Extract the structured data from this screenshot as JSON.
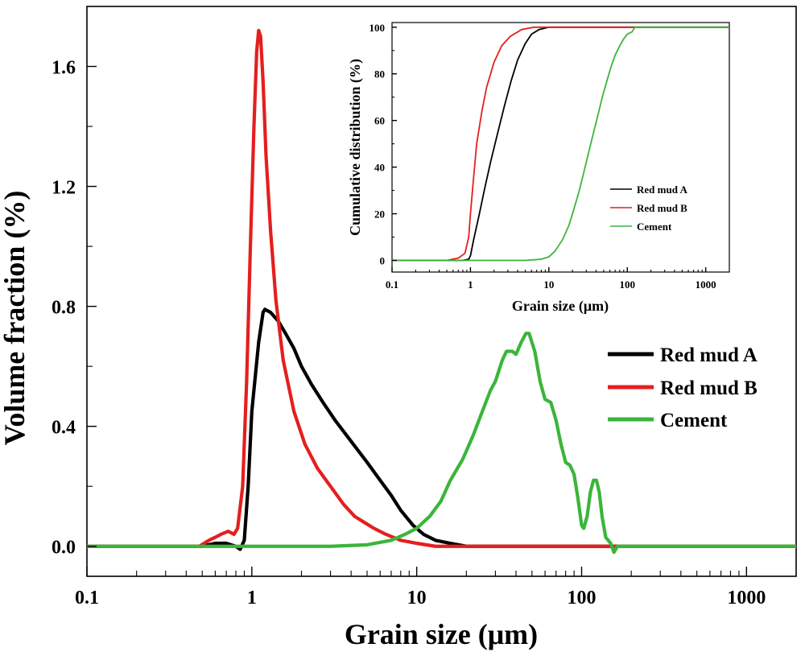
{
  "chart_data": [
    {
      "id": "main",
      "type": "line",
      "xlabel": "Grain size (μm)",
      "ylabel": "Volume fraction (%)",
      "xscale": "log",
      "xlim": [
        0.1,
        2000
      ],
      "ylim": [
        -0.1,
        1.8
      ],
      "x_ticks": [
        0.1,
        1,
        10,
        100,
        1000
      ],
      "x_tick_labels": [
        "0.1",
        "1",
        "10",
        "100",
        "1000"
      ],
      "y_ticks": [
        0.0,
        0.4,
        0.8,
        1.2,
        1.6
      ],
      "y_tick_labels": [
        "0.0",
        "0.4",
        "0.8",
        "1.2",
        "1.6"
      ],
      "legend_position": "middle-right",
      "grid": false,
      "series": [
        {
          "name": "Red mud A",
          "color": "#000000",
          "points": [
            [
              0.1,
              0
            ],
            [
              0.5,
              0
            ],
            [
              0.6,
              0.01
            ],
            [
              0.7,
              0.01
            ],
            [
              0.8,
              0.0
            ],
            [
              0.85,
              -0.01
            ],
            [
              0.9,
              0.02
            ],
            [
              0.95,
              0.2
            ],
            [
              1.0,
              0.45
            ],
            [
              1.1,
              0.68
            ],
            [
              1.17,
              0.78
            ],
            [
              1.2,
              0.79
            ],
            [
              1.3,
              0.78
            ],
            [
              1.45,
              0.75
            ],
            [
              1.6,
              0.71
            ],
            [
              1.8,
              0.66
            ],
            [
              2.0,
              0.6
            ],
            [
              2.3,
              0.54
            ],
            [
              2.7,
              0.48
            ],
            [
              3.2,
              0.42
            ],
            [
              4.0,
              0.35
            ],
            [
              5.0,
              0.28
            ],
            [
              6.0,
              0.22
            ],
            [
              7.0,
              0.17
            ],
            [
              8.0,
              0.12
            ],
            [
              9.5,
              0.07
            ],
            [
              11,
              0.04
            ],
            [
              13,
              0.02
            ],
            [
              16,
              0.01
            ],
            [
              20,
              0.0
            ],
            [
              30,
              0
            ],
            [
              2000,
              0
            ]
          ]
        },
        {
          "name": "Red mud B",
          "color": "#e41f1f",
          "points": [
            [
              0.1,
              0
            ],
            [
              0.48,
              0
            ],
            [
              0.55,
              0.02
            ],
            [
              0.6,
              0.03
            ],
            [
              0.65,
              0.04
            ],
            [
              0.72,
              0.05
            ],
            [
              0.78,
              0.04
            ],
            [
              0.82,
              0.06
            ],
            [
              0.88,
              0.2
            ],
            [
              0.93,
              0.55
            ],
            [
              0.98,
              1.0
            ],
            [
              1.03,
              1.4
            ],
            [
              1.07,
              1.65
            ],
            [
              1.1,
              1.72
            ],
            [
              1.13,
              1.7
            ],
            [
              1.17,
              1.55
            ],
            [
              1.22,
              1.3
            ],
            [
              1.3,
              1.05
            ],
            [
              1.4,
              0.82
            ],
            [
              1.55,
              0.62
            ],
            [
              1.8,
              0.45
            ],
            [
              2.1,
              0.34
            ],
            [
              2.5,
              0.26
            ],
            [
              3.0,
              0.2
            ],
            [
              3.6,
              0.14
            ],
            [
              4.2,
              0.1
            ],
            [
              4.8,
              0.08
            ],
            [
              5.5,
              0.06
            ],
            [
              6.5,
              0.04
            ],
            [
              8,
              0.02
            ],
            [
              10,
              0.01
            ],
            [
              13,
              0
            ],
            [
              20,
              0
            ],
            [
              2000,
              0
            ]
          ]
        },
        {
          "name": "Cement",
          "color": "#3bb53b",
          "points": [
            [
              0.1,
              0
            ],
            [
              3,
              0
            ],
            [
              5,
              0.005
            ],
            [
              7,
              0.02
            ],
            [
              8.5,
              0.04
            ],
            [
              10,
              0.06
            ],
            [
              12,
              0.1
            ],
            [
              14,
              0.15
            ],
            [
              16,
              0.22
            ],
            [
              19,
              0.29
            ],
            [
              22,
              0.37
            ],
            [
              25,
              0.45
            ],
            [
              28,
              0.52
            ],
            [
              30,
              0.55
            ],
            [
              33,
              0.62
            ],
            [
              35,
              0.65
            ],
            [
              38,
              0.65
            ],
            [
              40,
              0.64
            ],
            [
              43,
              0.68
            ],
            [
              46,
              0.71
            ],
            [
              48,
              0.71
            ],
            [
              52,
              0.65
            ],
            [
              56,
              0.55
            ],
            [
              60,
              0.49
            ],
            [
              65,
              0.48
            ],
            [
              70,
              0.42
            ],
            [
              75,
              0.34
            ],
            [
              80,
              0.28
            ],
            [
              85,
              0.27
            ],
            [
              90,
              0.24
            ],
            [
              95,
              0.16
            ],
            [
              100,
              0.07
            ],
            [
              103,
              0.06
            ],
            [
              108,
              0.1
            ],
            [
              113,
              0.18
            ],
            [
              118,
              0.22
            ],
            [
              123,
              0.22
            ],
            [
              128,
              0.18
            ],
            [
              133,
              0.1
            ],
            [
              140,
              0.03
            ],
            [
              150,
              0.01
            ],
            [
              157,
              -0.02
            ],
            [
              165,
              0.0
            ],
            [
              180,
              0
            ],
            [
              2000,
              0
            ]
          ]
        }
      ]
    },
    {
      "id": "inset",
      "type": "line",
      "xlabel": "Grain size (μm)",
      "ylabel": "Cumulative distribution (%)",
      "xscale": "log",
      "xlim": [
        0.1,
        2000
      ],
      "ylim": [
        -5,
        102
      ],
      "x_ticks": [
        0.1,
        1,
        10,
        100,
        1000
      ],
      "x_tick_labels": [
        "0.1",
        "1",
        "10",
        "100",
        "1000"
      ],
      "y_ticks": [
        0,
        20,
        40,
        60,
        80,
        100
      ],
      "y_tick_labels": [
        "0",
        "20",
        "40",
        "60",
        "80",
        "100"
      ],
      "legend_position": "bottom-right",
      "grid": false,
      "series": [
        {
          "name": "Red mud A",
          "color": "#000000",
          "points": [
            [
              0.1,
              0
            ],
            [
              0.8,
              0
            ],
            [
              0.95,
              0.5
            ],
            [
              1.0,
              2
            ],
            [
              1.1,
              9
            ],
            [
              1.3,
              20
            ],
            [
              1.5,
              30
            ],
            [
              1.8,
              42
            ],
            [
              2.2,
              54
            ],
            [
              2.7,
              66
            ],
            [
              3.3,
              77
            ],
            [
              4.0,
              86
            ],
            [
              5.0,
              93
            ],
            [
              6.0,
              97
            ],
            [
              7.5,
              99
            ],
            [
              10,
              100
            ],
            [
              2000,
              100
            ]
          ]
        },
        {
          "name": "Red mud B",
          "color": "#e41f1f",
          "points": [
            [
              0.1,
              0
            ],
            [
              0.5,
              0
            ],
            [
              0.7,
              1
            ],
            [
              0.85,
              3
            ],
            [
              0.95,
              10
            ],
            [
              1.0,
              20
            ],
            [
              1.1,
              36
            ],
            [
              1.2,
              50
            ],
            [
              1.4,
              64
            ],
            [
              1.6,
              74
            ],
            [
              2.0,
              85
            ],
            [
              2.5,
              92
            ],
            [
              3.2,
              96
            ],
            [
              4.5,
              99
            ],
            [
              6.5,
              100
            ],
            [
              2000,
              100
            ]
          ]
        },
        {
          "name": "Cement",
          "color": "#3bb53b",
          "points": [
            [
              0.1,
              0
            ],
            [
              5,
              0
            ],
            [
              8,
              0.5
            ],
            [
              10,
              1.5
            ],
            [
              12,
              4
            ],
            [
              15,
              9
            ],
            [
              18,
              15
            ],
            [
              20,
              20
            ],
            [
              24,
              29
            ],
            [
              28,
              38
            ],
            [
              32,
              46
            ],
            [
              36,
              53
            ],
            [
              42,
              62
            ],
            [
              48,
              70
            ],
            [
              55,
              77
            ],
            [
              62,
              83
            ],
            [
              70,
              88
            ],
            [
              80,
              92
            ],
            [
              90,
              95
            ],
            [
              100,
              97
            ],
            [
              115,
              98
            ],
            [
              125,
              100
            ],
            [
              140,
              100
            ],
            [
              2000,
              100
            ]
          ]
        }
      ]
    }
  ]
}
